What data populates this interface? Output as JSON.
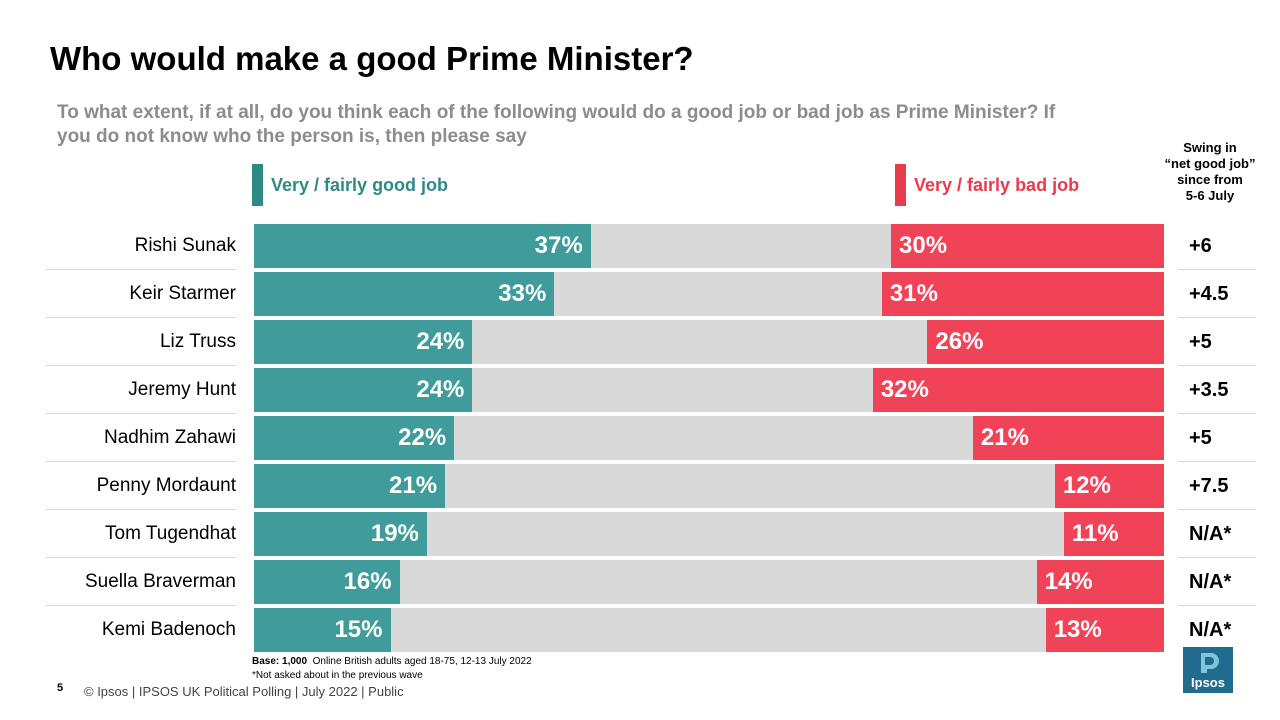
{
  "title": "Who would make a good Prime Minister?",
  "subtitle": "To what extent, if at all, do you think each of the following  would do a good job or bad job as Prime Minister? If you do not know who the person is, then please say",
  "legend": {
    "good": "Very / fairly good job",
    "bad": "Very / fairly bad job"
  },
  "swing_header": [
    "Swing in",
    "“net good job”",
    "since from",
    "5-6 July"
  ],
  "colors": {
    "good": "#3f9c9a",
    "bad": "#f04357",
    "track": "#d9d9d9"
  },
  "chart_data": {
    "type": "bar",
    "title": "Who would make a good Prime Minister?",
    "categories": [
      "Rishi Sunak",
      "Keir Starmer",
      "Liz Truss",
      "Jeremy Hunt",
      "Nadhim Zahawi",
      "Penny Mordaunt",
      "Tom Tugendhat",
      "Suella Braverman",
      "Kemi Badenoch"
    ],
    "series": [
      {
        "name": "Very / fairly good job",
        "values": [
          37,
          33,
          24,
          24,
          22,
          21,
          19,
          16,
          15
        ],
        "labels": [
          "37%",
          "33%",
          "24%",
          "24%",
          "22%",
          "21%",
          "19%",
          "16%",
          "15%"
        ]
      },
      {
        "name": "Very / fairly bad job",
        "values": [
          30,
          31,
          26,
          32,
          21,
          12,
          11,
          14,
          13
        ],
        "labels": [
          "30%",
          "31%",
          "26%",
          "32%",
          "21%",
          "12%",
          "11%",
          "14%",
          "13%"
        ]
      }
    ],
    "swing": [
      "+6",
      "+4.5",
      "+5",
      "+3.5",
      "+5",
      "+7.5",
      "N/A*",
      "N/A*",
      "N/A*"
    ],
    "xlim": [
      0,
      100
    ]
  },
  "base": {
    "label": "Base: 1,000",
    "text": "Online British adults aged 18-75, 12-13 July 2022",
    "note": "*Not asked about in the previous wave"
  },
  "footer": {
    "page": "5",
    "text": "© Ipsos  |  IPSOS UK Political Polling | July 2022 | Public"
  },
  "logo": {
    "text": "Ipsos"
  }
}
